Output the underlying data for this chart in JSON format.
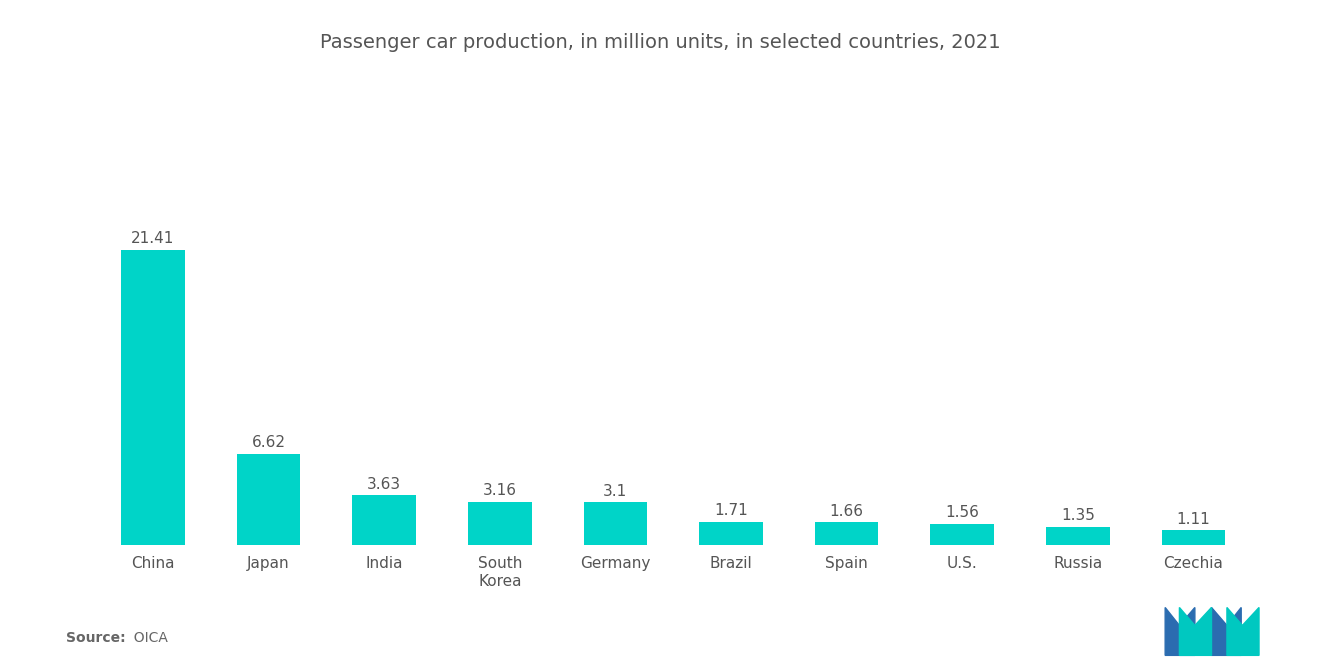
{
  "title": "Passenger car production, in million units, in selected countries, 2021",
  "categories": [
    "China",
    "Japan",
    "India",
    "South\nKorea",
    "Germany",
    "Brazil",
    "Spain",
    "U.S.",
    "Russia",
    "Czechia"
  ],
  "values": [
    21.41,
    6.62,
    3.63,
    3.16,
    3.1,
    1.71,
    1.66,
    1.56,
    1.35,
    1.11
  ],
  "bar_color": "#00D4C8",
  "background_color": "#FFFFFF",
  "title_fontsize": 14,
  "label_fontsize": 11,
  "value_fontsize": 11,
  "source_bold": "Source:",
  "source_normal": "  OICA",
  "ylim": [
    0,
    26
  ],
  "logo_blue": "#2B6CB0",
  "logo_teal": "#00C8C0"
}
